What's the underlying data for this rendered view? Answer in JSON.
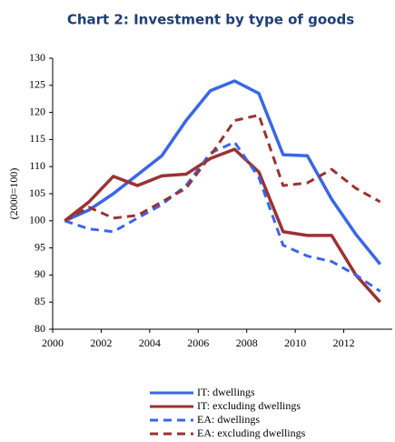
{
  "chart_data": {
    "type": "line",
    "title": "Chart 2: Investment by type of goods",
    "y_label": "(2000=100)",
    "x": [
      2000.5,
      2001.5,
      2002.5,
      2003.5,
      2004.5,
      2005.5,
      2006.5,
      2007.5,
      2008.5,
      2009.5,
      2010.5,
      2011.5,
      2012.5,
      2013.5
    ],
    "series": [
      {
        "name": "IT: dwellings",
        "color": "#3a66e8",
        "dash": "solid",
        "values": [
          100,
          102,
          105,
          108.5,
          112,
          118.5,
          124,
          125.8,
          123.5,
          112.2,
          112,
          104,
          97.5,
          92
        ]
      },
      {
        "name": "IT: excluding dwellings",
        "color": "#9b3232",
        "dash": "solid",
        "values": [
          100,
          103.5,
          108.2,
          106.5,
          108.3,
          108.6,
          111.5,
          113.2,
          109,
          98,
          97.3,
          97.3,
          90,
          85
        ]
      },
      {
        "name": "EA: dwellings",
        "color": "#3a66e8",
        "dash": "dashed",
        "values": [
          100,
          98.5,
          98,
          100.5,
          103,
          106.5,
          112.5,
          114.5,
          108,
          95.5,
          93.5,
          92.5,
          90,
          87
        ]
      },
      {
        "name": "EA: excluding dwellings",
        "color": "#9b3232",
        "dash": "dashed",
        "values": [
          100,
          102.5,
          100.5,
          101,
          103.5,
          106,
          112,
          118.5,
          119.5,
          106.5,
          107,
          109.5,
          106,
          103.5
        ]
      }
    ],
    "xlim": [
      2000,
      2014
    ],
    "xticks": [
      2000,
      2002,
      2004,
      2006,
      2008,
      2010,
      2012
    ],
    "ylim": [
      80,
      130
    ],
    "yticks": [
      80,
      85,
      90,
      95,
      100,
      105,
      110,
      115,
      120,
      125,
      130
    ],
    "grid": false,
    "legend": "bottom"
  }
}
